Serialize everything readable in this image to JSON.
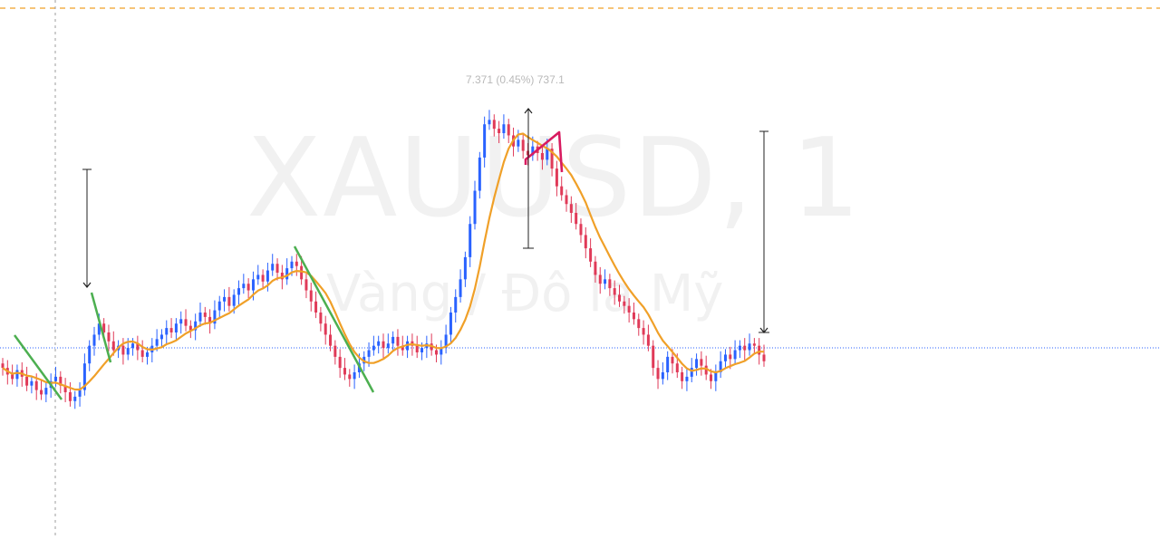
{
  "watermark": {
    "symbol": "XAUUSD, 1",
    "description": "Vàng / Đô la Mỹ"
  },
  "measure_label": "7.371 (0.45%) 737.1",
  "colors": {
    "up": "#2962ff",
    "down": "#e03a58",
    "ma": "#f0a028",
    "trendline": "#4caf50",
    "pattern": "#d81b60",
    "alert_line": "#f0a028",
    "price_line": "#2962ff",
    "crosshair": "#9e9e9e",
    "arrow": "#222222"
  },
  "chart_data": {
    "type": "candlestick",
    "symbol": "XAUUSD",
    "timeframe": "1",
    "note_units": "index units (no price axis visible)",
    "closes": [
      30,
      27,
      25,
      29,
      26,
      22,
      24,
      20,
      18,
      21,
      24,
      26,
      22,
      19,
      15,
      17,
      20,
      32,
      40,
      45,
      50,
      46,
      42,
      38,
      40,
      36,
      39,
      41,
      38,
      35,
      37,
      40,
      43,
      45,
      48,
      46,
      50,
      52,
      49,
      47,
      51,
      55,
      53,
      50,
      56,
      60,
      62,
      58,
      63,
      66,
      68,
      65,
      70,
      72,
      69,
      74,
      77,
      73,
      70,
      75,
      78,
      76,
      70,
      65,
      60,
      55,
      50,
      45,
      40,
      35,
      30,
      27,
      25,
      28,
      32,
      35,
      38,
      40,
      42,
      39,
      41,
      44,
      40,
      38,
      42,
      40,
      37,
      39,
      41,
      38,
      36,
      39,
      45,
      55,
      62,
      70,
      80,
      95,
      110,
      125,
      140,
      142,
      138,
      136,
      140,
      135,
      130,
      133,
      128,
      126,
      130,
      127,
      124,
      129,
      120,
      112,
      108,
      104,
      100,
      95,
      90,
      84,
      78,
      72,
      68,
      70,
      66,
      63,
      60,
      58,
      55,
      52,
      48,
      45,
      40,
      30,
      25,
      28,
      35,
      32,
      28,
      24,
      26,
      30,
      34,
      31,
      27,
      24,
      28,
      33,
      36,
      34,
      38,
      40,
      38,
      41,
      40,
      36,
      33
    ],
    "moving_average": {
      "type": "line",
      "style": "smoothed"
    },
    "drawings": {
      "trendlines": 3,
      "pattern_lines": 1,
      "measure_ranges": 3,
      "horizontal_alert_line": true,
      "current_price_line": true,
      "vertical_crosshair": true
    }
  }
}
